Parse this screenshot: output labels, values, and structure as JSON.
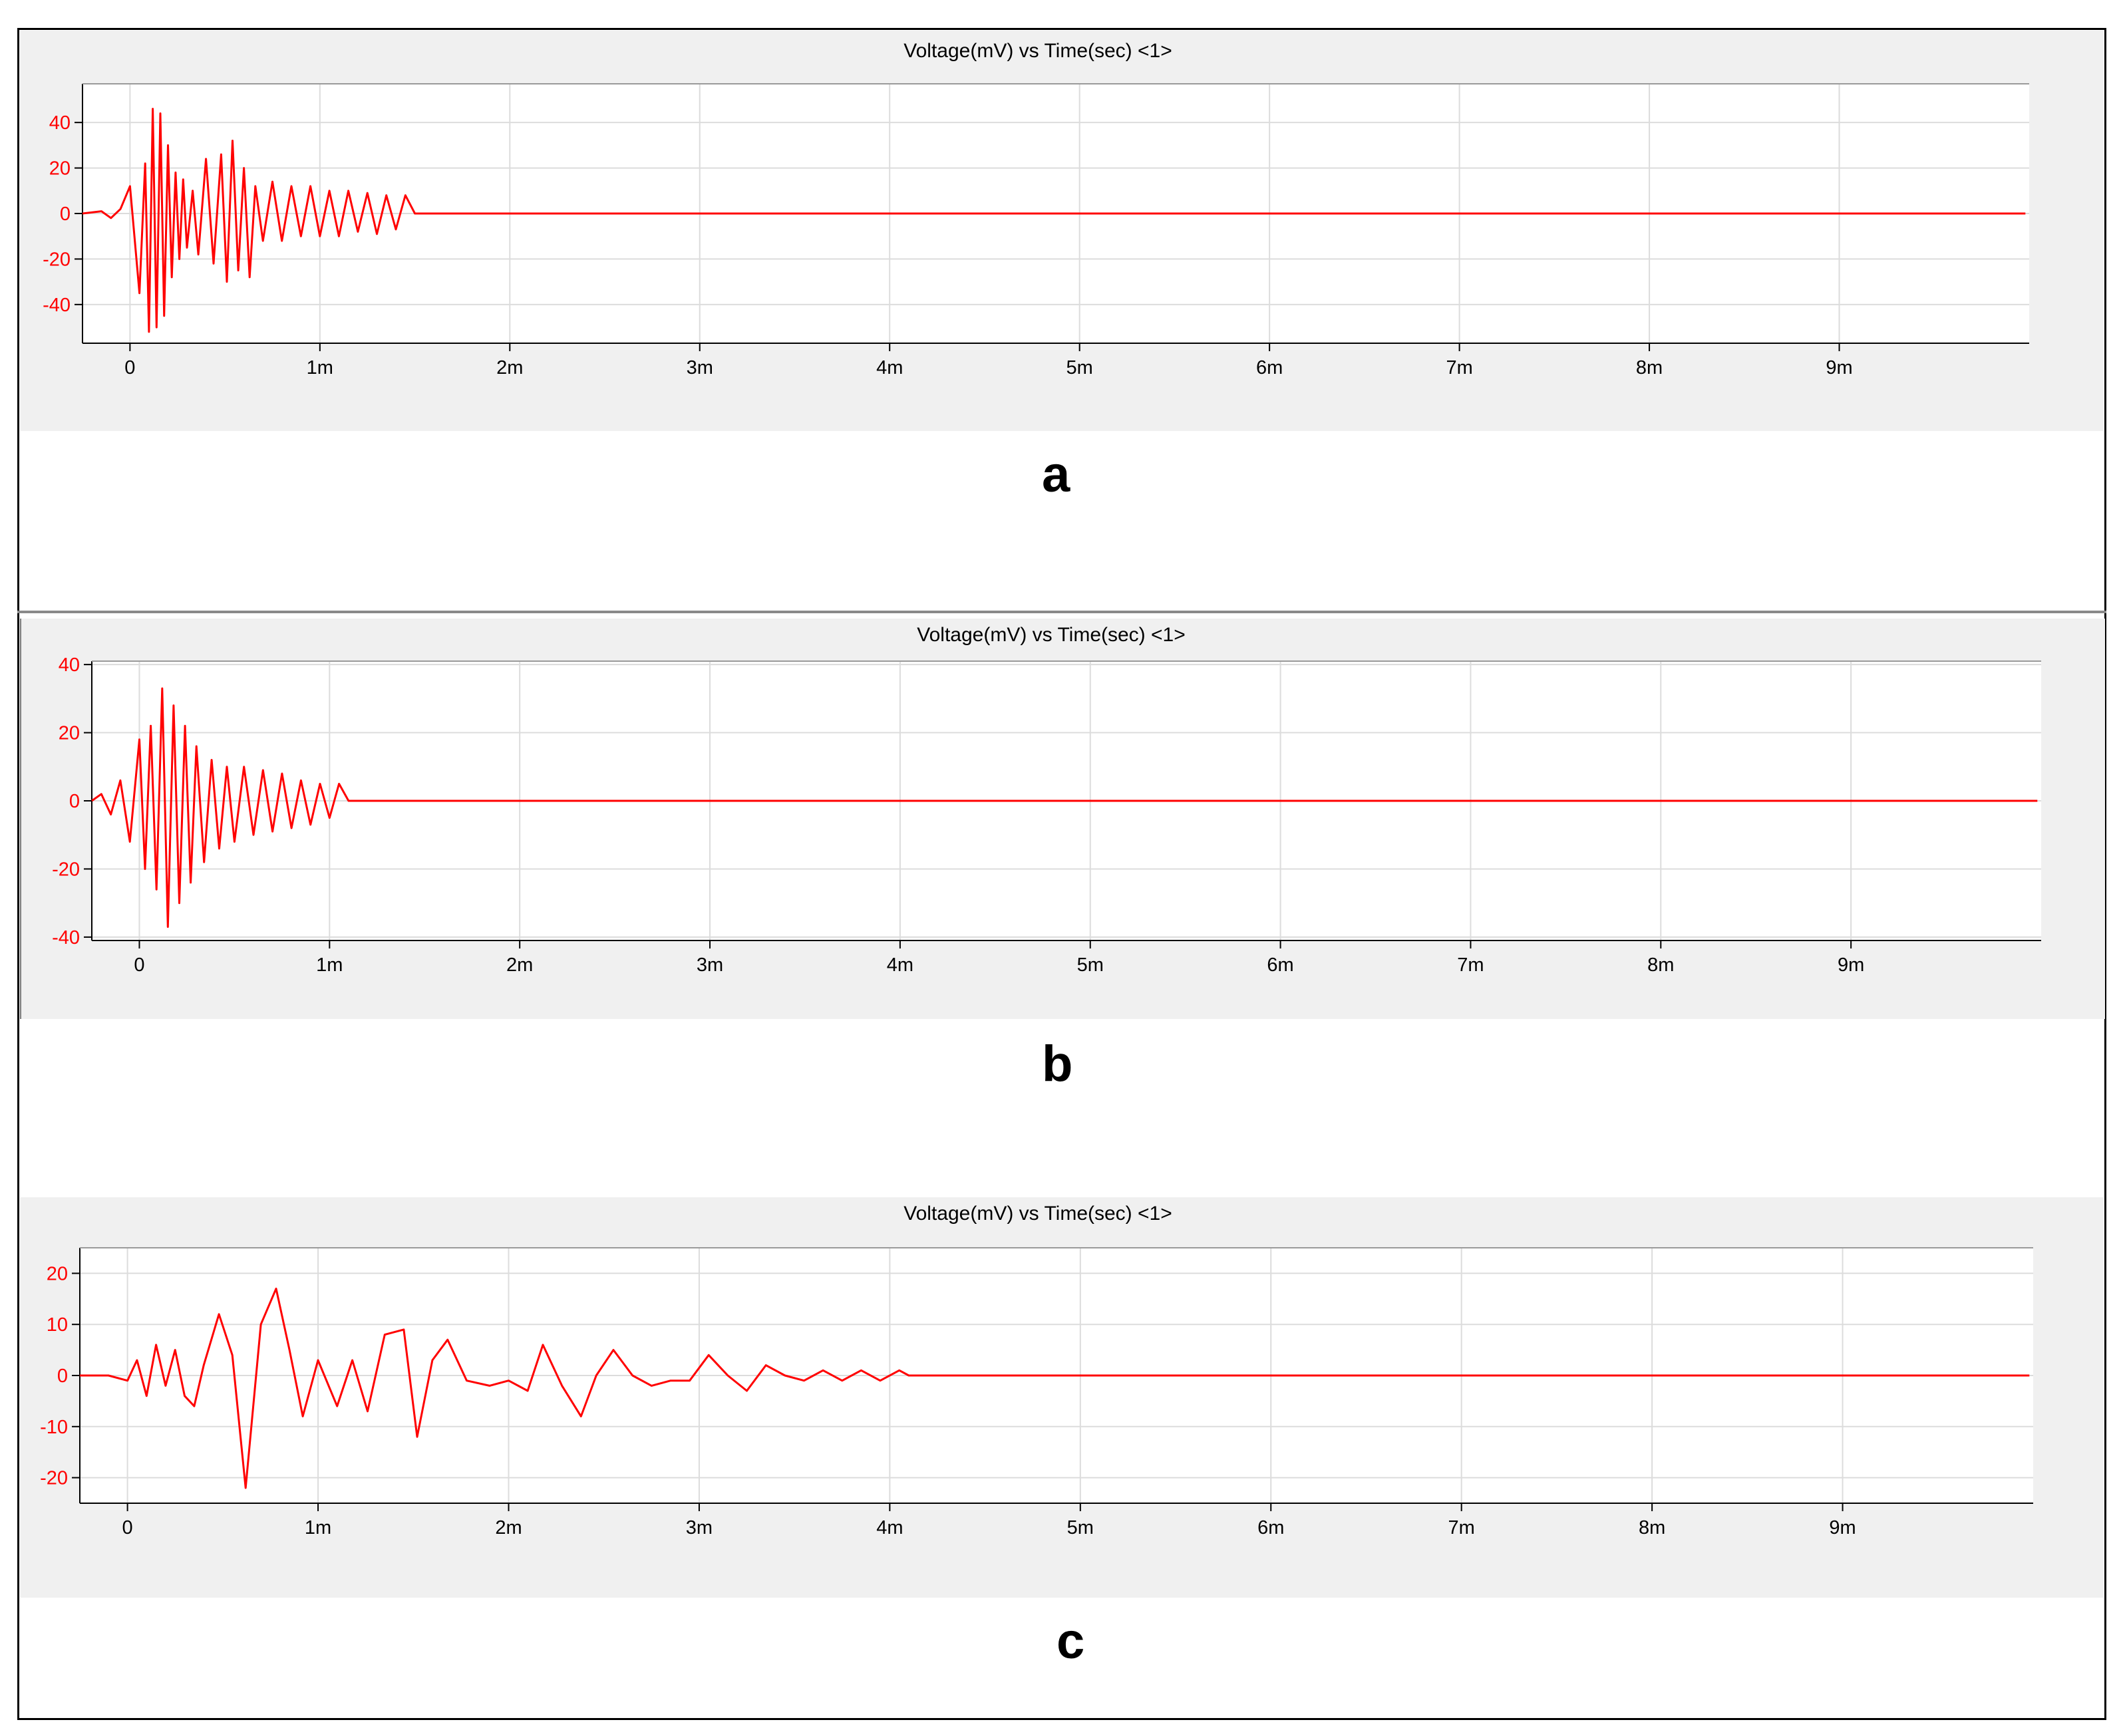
{
  "figure": {
    "labels": [
      "a",
      "b",
      "c"
    ],
    "colors": {
      "signal": "#ff0000",
      "ytick": "#ff0000",
      "grid": "#dcdcdc",
      "panel_bg": "#f0f0f0",
      "plot_bg": "#ffffff"
    }
  },
  "chart_data": [
    {
      "type": "line",
      "title": "Voltage(mV) vs Time(sec) <1>",
      "xlabel": "",
      "ylabel": "",
      "xlim": [
        -0.00025,
        0.01
      ],
      "ylim": [
        -57,
        57
      ],
      "x_unit": "s",
      "x_ticks": [
        0,
        0.001,
        0.002,
        0.003,
        0.004,
        0.005,
        0.006,
        0.007,
        0.008,
        0.009
      ],
      "x_tick_labels": [
        "0",
        "1m",
        "2m",
        "3m",
        "4m",
        "5m",
        "6m",
        "7m",
        "8m",
        "9m"
      ],
      "y_ticks": [
        40,
        20,
        0,
        -20,
        -40
      ],
      "y_tick_labels": [
        "40",
        "20",
        "0",
        "-20",
        "-40"
      ],
      "grid": true,
      "series": [
        {
          "color": "#ff0000",
          "signal_end": 0.0015,
          "x_end": 0.00998,
          "x": [
            -0.00025,
            -0.00015,
            -0.0001,
            -5e-05,
            0,
            5e-05,
            8e-05,
            0.0001,
            0.00012,
            0.00014,
            0.00016,
            0.00018,
            0.0002,
            0.00022,
            0.00024,
            0.00026,
            0.00028,
            0.0003,
            0.00033,
            0.00036,
            0.0004,
            0.00044,
            0.00048,
            0.00051,
            0.00054,
            0.00057,
            0.0006,
            0.00063,
            0.00066,
            0.0007,
            0.00075,
            0.0008,
            0.00085,
            0.0009,
            0.00095,
            0.001,
            0.00105,
            0.0011,
            0.00115,
            0.0012,
            0.00125,
            0.0013,
            0.00135,
            0.0014,
            0.00145,
            0.0015
          ],
          "y": [
            0,
            1,
            -2,
            2,
            12,
            -35,
            22,
            -52,
            46,
            -50,
            44,
            -45,
            30,
            -28,
            18,
            -20,
            15,
            -15,
            10,
            -18,
            24,
            -22,
            26,
            -30,
            32,
            -25,
            20,
            -28,
            12,
            -12,
            14,
            -12,
            12,
            -10,
            12,
            -10,
            10,
            -10,
            10,
            -8,
            9,
            -9,
            8,
            -7,
            8,
            0
          ]
        }
      ]
    },
    {
      "type": "line",
      "title": "Voltage(mV) vs Time(sec) <1>",
      "xlabel": "",
      "ylabel": "",
      "xlim": [
        -0.00025,
        0.01
      ],
      "ylim": [
        -41,
        41
      ],
      "x_unit": "s",
      "x_ticks": [
        0,
        0.001,
        0.002,
        0.003,
        0.004,
        0.005,
        0.006,
        0.007,
        0.008,
        0.009
      ],
      "x_tick_labels": [
        "0",
        "1m",
        "2m",
        "3m",
        "4m",
        "5m",
        "6m",
        "7m",
        "8m",
        "9m"
      ],
      "y_ticks": [
        40,
        20,
        0,
        -20,
        -40
      ],
      "y_tick_labels": [
        "40",
        "20",
        "0",
        "-20",
        "-40"
      ],
      "grid": true,
      "series": [
        {
          "color": "#ff0000",
          "signal_end": 0.0011,
          "x_end": 0.00998,
          "x": [
            -0.00025,
            -0.0002,
            -0.00015,
            -0.0001,
            -5e-05,
            0,
            3e-05,
            6e-05,
            9e-05,
            0.00012,
            0.00015,
            0.00018,
            0.00021,
            0.00024,
            0.00027,
            0.0003,
            0.00034,
            0.00038,
            0.00042,
            0.00046,
            0.0005,
            0.00055,
            0.0006,
            0.00065,
            0.0007,
            0.00075,
            0.0008,
            0.00085,
            0.0009,
            0.00095,
            0.001,
            0.00105,
            0.0011
          ],
          "y": [
            0,
            2,
            -4,
            6,
            -12,
            18,
            -20,
            22,
            -26,
            33,
            -37,
            28,
            -30,
            22,
            -24,
            16,
            -18,
            12,
            -14,
            10,
            -12,
            10,
            -10,
            9,
            -9,
            8,
            -8,
            6,
            -7,
            5,
            -5,
            5,
            0
          ]
        }
      ]
    },
    {
      "type": "line",
      "title": "Voltage(mV) vs Time(sec) <1>",
      "xlabel": "",
      "ylabel": "",
      "xlim": [
        -0.00025,
        0.01
      ],
      "ylim": [
        -25,
        25
      ],
      "x_unit": "s",
      "x_ticks": [
        0,
        0.001,
        0.002,
        0.003,
        0.004,
        0.005,
        0.006,
        0.007,
        0.008,
        0.009
      ],
      "x_tick_labels": [
        "0",
        "1m",
        "2m",
        "3m",
        "4m",
        "5m",
        "6m",
        "7m",
        "8m",
        "9m"
      ],
      "y_ticks": [
        20,
        10,
        0,
        -10,
        -20
      ],
      "y_tick_labels": [
        "20",
        "10",
        "0",
        "-10",
        "-20"
      ],
      "grid": true,
      "series": [
        {
          "color": "#ff0000",
          "signal_end": 0.0041,
          "x_end": 0.00998,
          "x": [
            -0.00025,
            -0.0001,
            0,
            5e-05,
            0.0001,
            0.00015,
            0.0002,
            0.00025,
            0.0003,
            0.00035,
            0.0004,
            0.00048,
            0.00055,
            0.00062,
            0.0007,
            0.00078,
            0.00085,
            0.00092,
            0.001,
            0.0011,
            0.00118,
            0.00126,
            0.00135,
            0.00145,
            0.00152,
            0.0016,
            0.00168,
            0.00178,
            0.0019,
            0.002,
            0.0021,
            0.00218,
            0.00228,
            0.00238,
            0.00246,
            0.00255,
            0.00265,
            0.00275,
            0.00285,
            0.00295,
            0.00305,
            0.00315,
            0.00325,
            0.00335,
            0.00345,
            0.00355,
            0.00365,
            0.00375,
            0.00385,
            0.00395,
            0.00405,
            0.0041
          ],
          "y": [
            0,
            0,
            -1,
            3,
            -4,
            6,
            -2,
            5,
            -4,
            -6,
            2,
            12,
            4,
            -22,
            10,
            17,
            5,
            -8,
            3,
            -6,
            3,
            -7,
            8,
            9,
            -12,
            3,
            7,
            -1,
            -2,
            -1,
            -3,
            6,
            -2,
            -8,
            0,
            5,
            0,
            -2,
            -1,
            -1,
            4,
            0,
            -3,
            2,
            0,
            -1,
            1,
            -1,
            1,
            -1,
            1,
            0
          ]
        }
      ]
    }
  ]
}
